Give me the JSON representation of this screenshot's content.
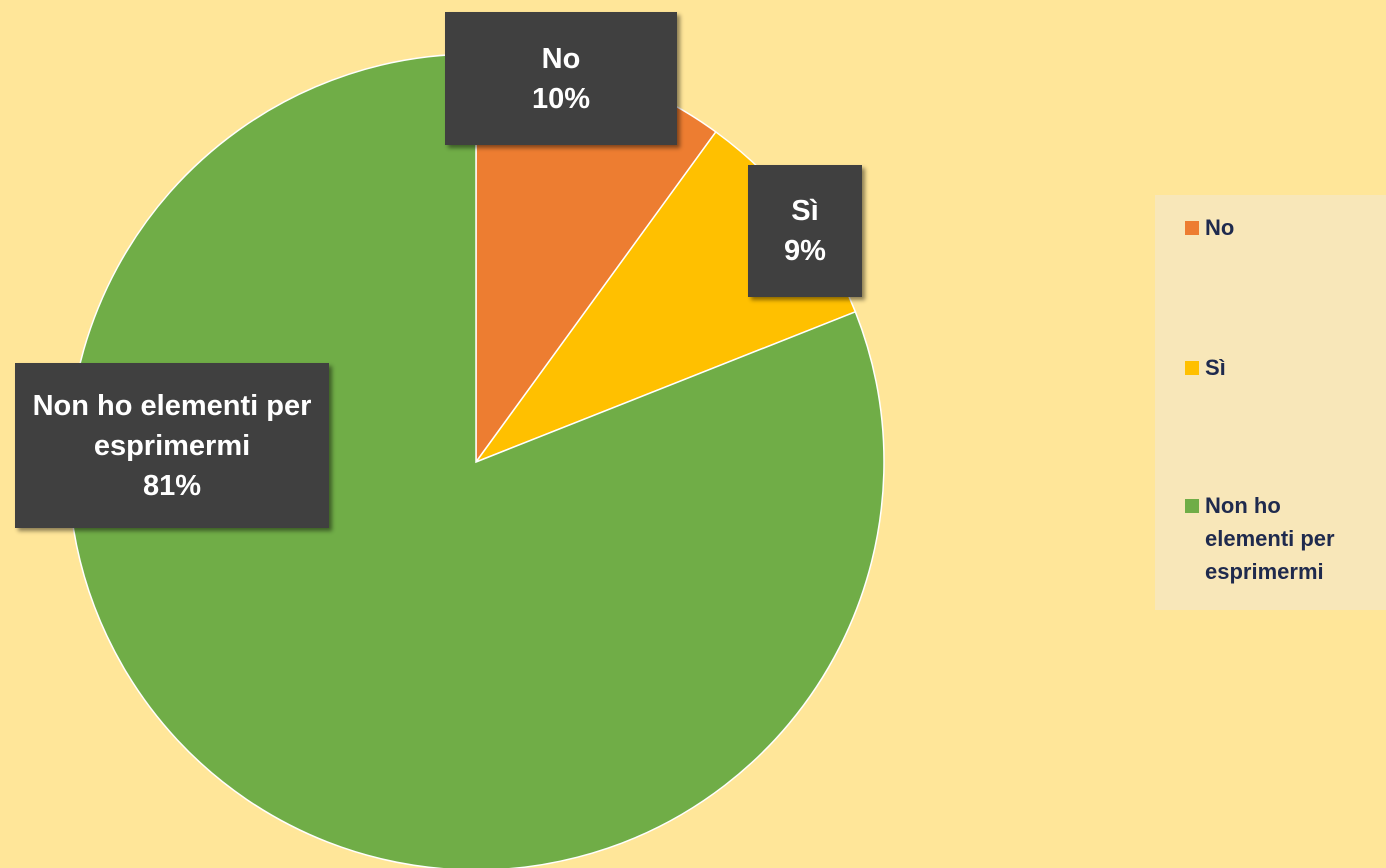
{
  "chart_data": {
    "type": "pie",
    "categories": [
      "No",
      "Sì",
      "Non ho elementi per esprimermi"
    ],
    "values": [
      10,
      9,
      81
    ],
    "value_labels": [
      "10%",
      "9%",
      "81%"
    ],
    "colors": [
      "#ed7d31",
      "#ffc000",
      "#70ad47"
    ],
    "legend": "right"
  }
}
